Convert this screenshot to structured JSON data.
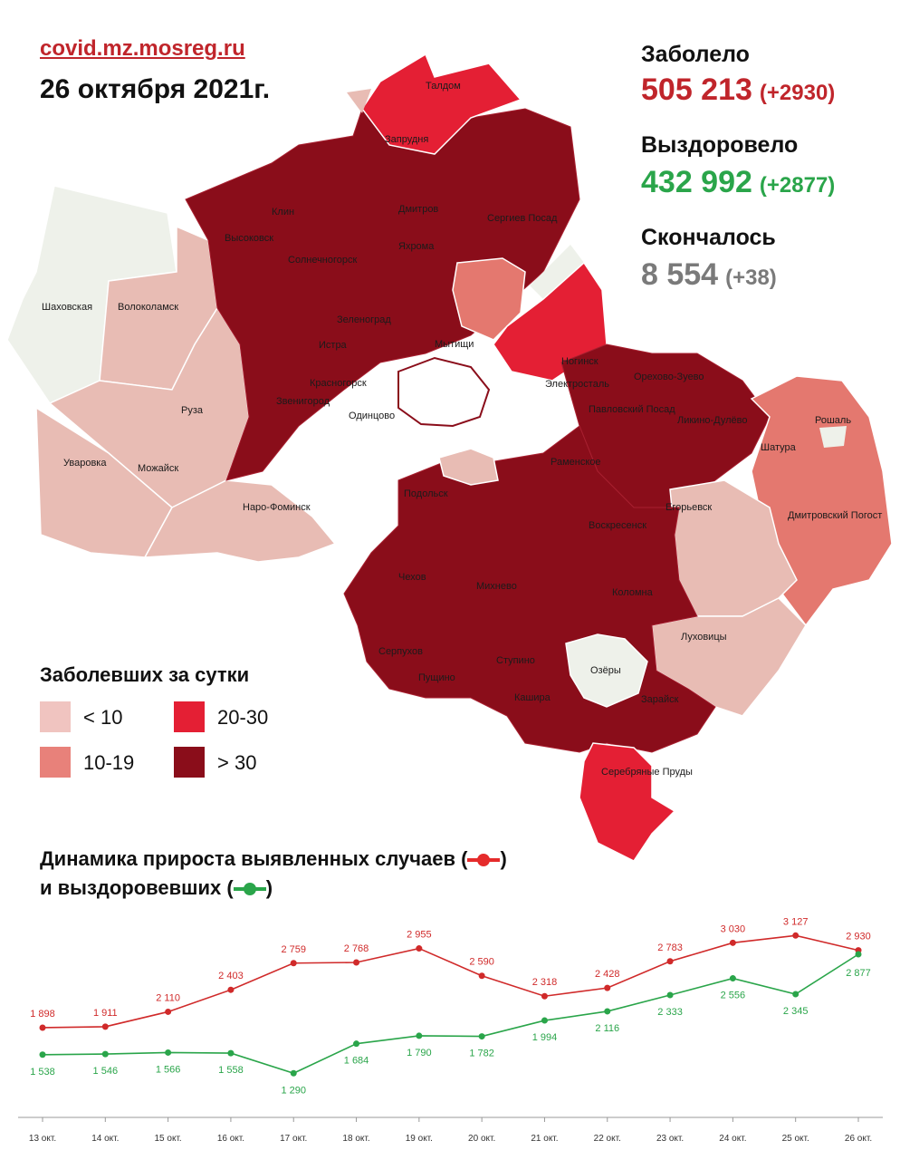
{
  "header": {
    "source": "covid.mz.mosreg.ru",
    "date": "26 октября 2021г."
  },
  "stats": {
    "cases": {
      "label": "Заболело",
      "value": "505 213",
      "delta": "(+2930)",
      "color": "#c0252b"
    },
    "recovered": {
      "label": "Выздоровело",
      "value": "432 992",
      "delta": "(+2877)",
      "color": "#2aa54a"
    },
    "deaths": {
      "label": "Скончалось",
      "value": "8 554",
      "delta": "(+38)",
      "color": "#7a7a7a"
    }
  },
  "map": {
    "labels": [
      "Талдом",
      "Запрудня",
      "Клин",
      "Дмитров",
      "Сергиев Посад",
      "Высоковск",
      "Яхрома",
      "Солнечногорск",
      "Шаховская",
      "Волоколамск",
      "Зеленоград",
      "Мытищи",
      "Истра",
      "Ногинск",
      "Электросталь",
      "Орехово-Зуево",
      "Красногорск",
      "Звенигород",
      "Одинцово",
      "Павловский Посад",
      "Ликино-Дулёво",
      "Рошаль",
      "Руза",
      "Шатура",
      "Уваровка",
      "Можайск",
      "Раменское",
      "Наро-Фоминск",
      "Подольск",
      "Егорьевск",
      "Дмитровский Погост",
      "Воскресенск",
      "Чехов",
      "Михнево",
      "Коломна",
      "Луховицы",
      "Серпухов",
      "Пущино",
      "Ступино",
      "Озёры",
      "Кашира",
      "Зарайск",
      "Серебряные Пруды"
    ],
    "colors": {
      "white": "#eef1ea",
      "light": "#e8bcb4",
      "mid": "#e4786f",
      "bright": "#e41f34",
      "dark": "#8a0d1a"
    }
  },
  "legend": {
    "title": "Заболевших за сутки",
    "items": [
      {
        "label": "< 10",
        "color": "#f0c4c0"
      },
      {
        "label": "10-19",
        "color": "#e8817a"
      },
      {
        "label": "20-30",
        "color": "#e41f34"
      },
      {
        "label": "> 30",
        "color": "#8a0d1a"
      }
    ]
  },
  "dynamics": {
    "title_line1": "Динамика прироста выявленных случаев (",
    "title_line2": "и выздоровевших (",
    "close_paren": ")"
  },
  "chart_data": {
    "type": "line",
    "categories": [
      "13 окт.",
      "14 окт.",
      "15 окт.",
      "16 окт.",
      "17 окт.",
      "18 окт.",
      "19 окт.",
      "20 окт.",
      "21 окт.",
      "22 окт.",
      "23 окт.",
      "24 окт.",
      "25 окт.",
      "26 окт."
    ],
    "series": [
      {
        "color": "#d02a2a",
        "values": [
          1898,
          1911,
          2110,
          2403,
          2759,
          2768,
          2955,
          2590,
          2318,
          2428,
          2783,
          3030,
          3127,
          2930
        ],
        "labels": [
          "1 898",
          "1 911",
          "2 110",
          "2 403",
          "2 759",
          "2 768",
          "2 955",
          "2 590",
          "2 318",
          "2 428",
          "2 783",
          "3 030",
          "3 127",
          "2 930"
        ]
      },
      {
        "color": "#2aa54a",
        "values": [
          1538,
          1546,
          1566,
          1558,
          1290,
          1684,
          1790,
          1782,
          1994,
          2116,
          2333,
          2556,
          2345,
          2877
        ],
        "labels": [
          "1 538",
          "1 546",
          "1 566",
          "1 558",
          "1 290",
          "1 684",
          "1 790",
          "1 782",
          "1 994",
          "2 116",
          "2 333",
          "2 556",
          "2 345",
          "2 877"
        ]
      }
    ],
    "title": "",
    "xlabel": "",
    "ylabel": "",
    "ylim": [
      1100,
      3300
    ]
  }
}
